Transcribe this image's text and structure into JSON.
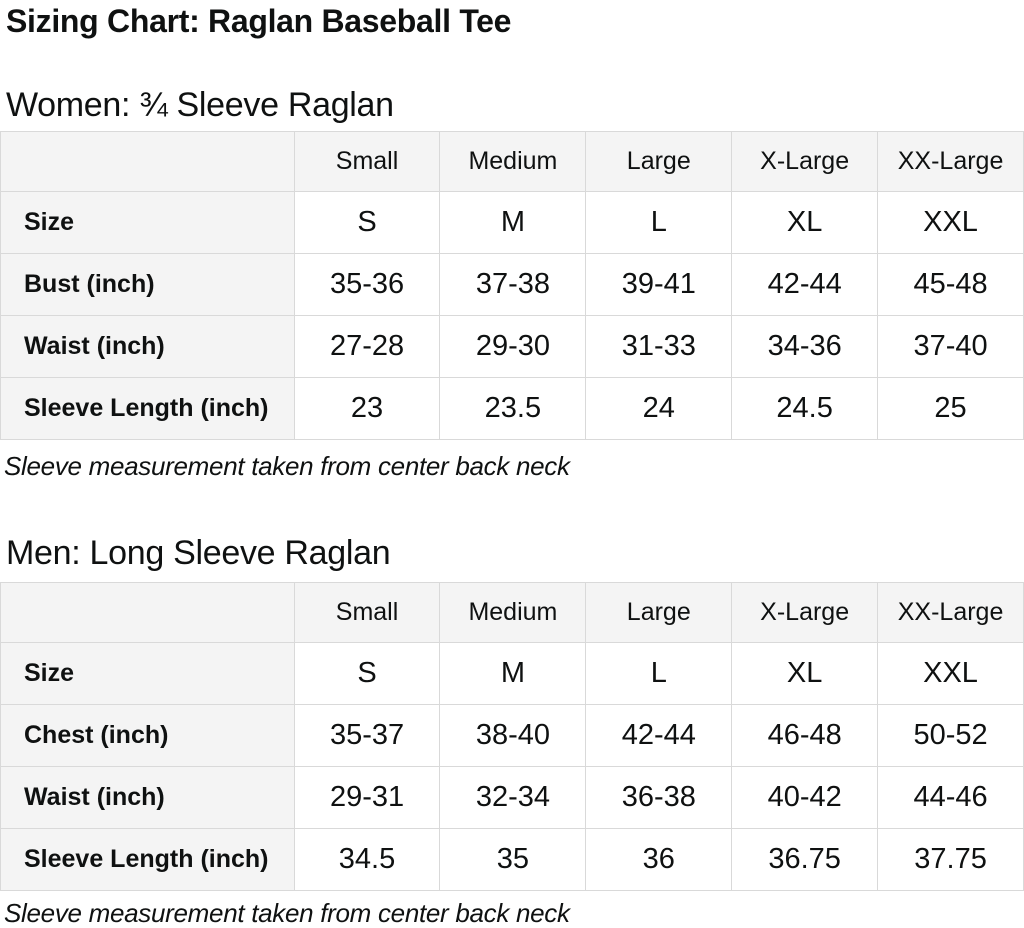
{
  "page": {
    "title": "Sizing Chart: Raglan Baseball Tee"
  },
  "colors": {
    "text": "#0f1111",
    "header_background": "#f4f4f4",
    "cell_background": "#ffffff",
    "border": "#d9d9d9"
  },
  "sections": [
    {
      "heading": "Women: ¾ Sleeve Raglan",
      "note": "Sleeve measurement taken from center back neck",
      "table": {
        "columns": [
          "Small",
          "Medium",
          "Large",
          "X-Large",
          "XX-Large"
        ],
        "rows": [
          {
            "label": "Size",
            "values": [
              "S",
              "M",
              "L",
              "XL",
              "XXL"
            ]
          },
          {
            "label": "Bust (inch)",
            "values": [
              "35-36",
              "37-38",
              "39-41",
              "42-44",
              "45-48"
            ]
          },
          {
            "label": "Waist (inch)",
            "values": [
              "27-28",
              "29-30",
              "31-33",
              "34-36",
              "37-40"
            ]
          },
          {
            "label": "Sleeve Length (inch)",
            "values": [
              "23",
              "23.5",
              "24",
              "24.5",
              "25"
            ]
          }
        ]
      }
    },
    {
      "heading": "Men: Long Sleeve Raglan",
      "note": "Sleeve measurement taken from center back neck",
      "table": {
        "columns": [
          "Small",
          "Medium",
          "Large",
          "X-Large",
          "XX-Large"
        ],
        "rows": [
          {
            "label": "Size",
            "values": [
              "S",
              "M",
              "L",
              "XL",
              "XXL"
            ]
          },
          {
            "label": "Chest (inch)",
            "values": [
              "35-37",
              "38-40",
              "42-44",
              "46-48",
              "50-52"
            ]
          },
          {
            "label": "Waist (inch)",
            "values": [
              "29-31",
              "32-34",
              "36-38",
              "40-42",
              "44-46"
            ]
          },
          {
            "label": "Sleeve Length (inch)",
            "values": [
              "34.5",
              "35",
              "36",
              "36.75",
              "37.75"
            ]
          }
        ]
      }
    }
  ]
}
